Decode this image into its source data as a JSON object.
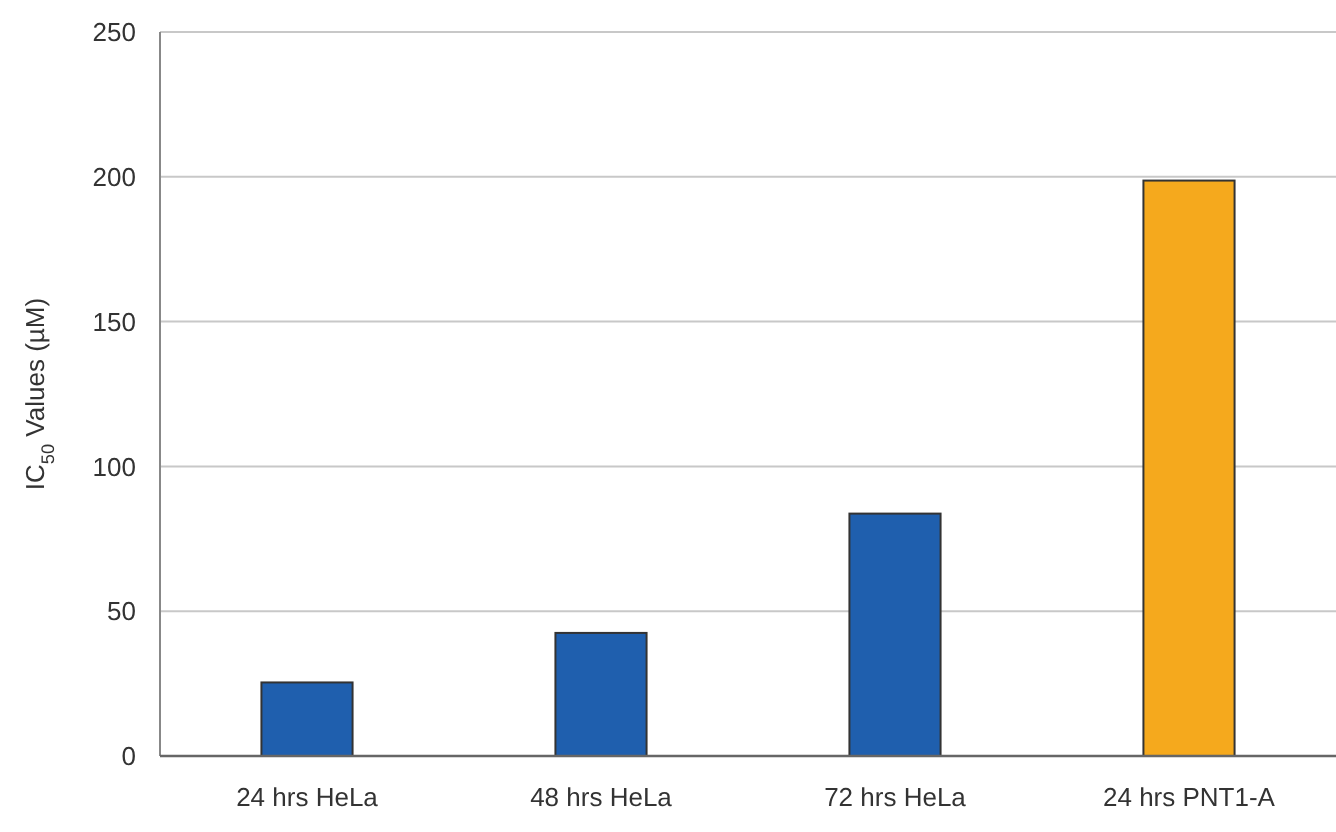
{
  "chart_data": {
    "type": "bar",
    "ylabel": "IC$_{50}$ Values  (µM)",
    "categories": [
      "24 hrs HeLa",
      "48 hrs HeLa",
      "72 hrs HeLa",
      "24 hrs PNT1-A"
    ],
    "values": [
      25.4,
      42.5,
      83.7,
      198.7
    ],
    "colors": [
      "#1f5fae",
      "#1f5fae",
      "#1f5fae",
      "#f5a91d"
    ],
    "ylim": [
      0,
      250
    ],
    "yticks": [
      0,
      50,
      100,
      150,
      200,
      250
    ],
    "grid": "y"
  }
}
